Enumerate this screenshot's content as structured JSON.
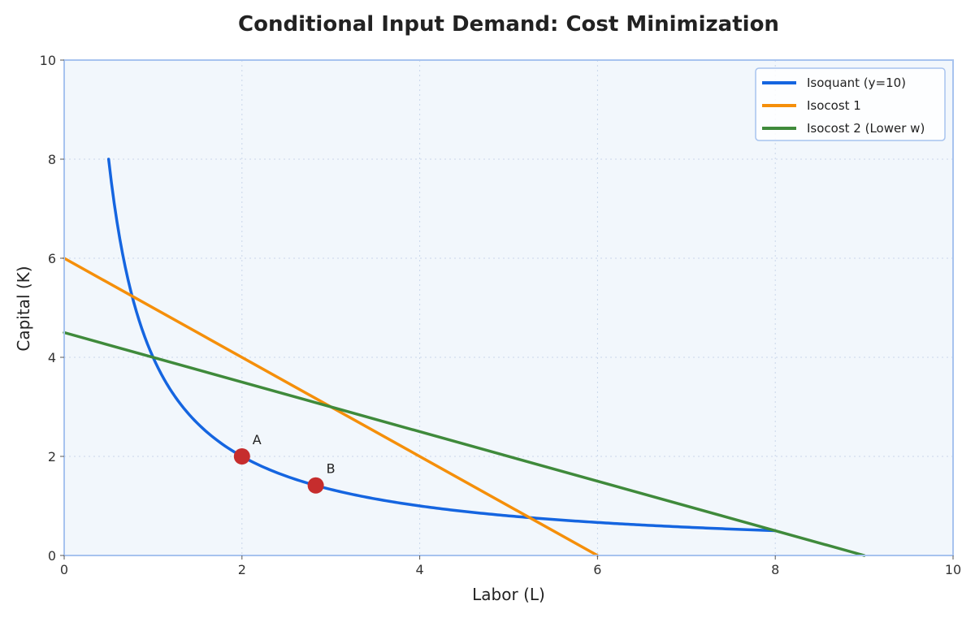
{
  "chart_data": {
    "type": "line",
    "title": "Conditional Input Demand: Cost Minimization",
    "xlabel": "Labor (L)",
    "ylabel": "Capital (K)",
    "xlim": [
      0,
      10
    ],
    "ylim": [
      0,
      10
    ],
    "xticks": [
      "0",
      "2",
      "4",
      "6",
      "8",
      "10"
    ],
    "yticks": [
      "0",
      "2",
      "4",
      "6",
      "8",
      "10"
    ],
    "grid": true,
    "legend_position": "top-right",
    "colors": {
      "plot_background": "#f2f7fc",
      "frame": "#a7c3ef",
      "points": "#c62d2d"
    },
    "series": [
      {
        "name": "Isoquant (y=10)",
        "color": "#1565e0",
        "x": [
          0.5,
          0.55,
          0.6,
          0.7,
          0.8,
          1.0,
          1.2,
          1.5,
          2.0,
          2.5,
          3.0,
          3.5,
          4.0,
          5.0,
          6.0,
          7.0,
          8.0
        ],
        "y": [
          8.0,
          7.273,
          6.667,
          5.714,
          5.0,
          4.0,
          3.333,
          2.667,
          2.0,
          1.6,
          1.333,
          1.143,
          1.0,
          0.8,
          0.667,
          0.571,
          0.5
        ]
      },
      {
        "name": "Isocost 1",
        "color": "#f58f0a",
        "x": [
          0,
          6
        ],
        "y": [
          6,
          0
        ]
      },
      {
        "name": "Isocost 2 (Lower w)",
        "color": "#3f8a3b",
        "x": [
          0,
          9
        ],
        "y": [
          4.5,
          0
        ]
      }
    ],
    "points": [
      {
        "label": "A",
        "x": 2.0,
        "y": 2.0
      },
      {
        "label": "B",
        "x": 2.83,
        "y": 1.414
      }
    ]
  }
}
